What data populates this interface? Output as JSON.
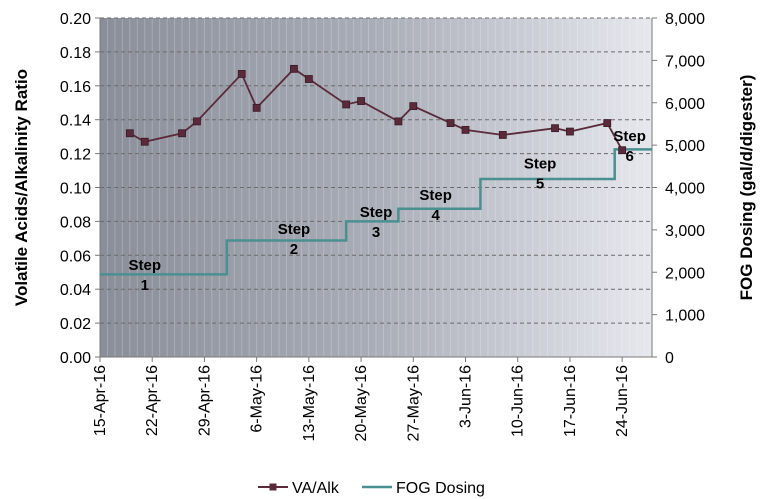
{
  "chart_data": {
    "type": "line",
    "title": "",
    "x_axis": {
      "start": "2016-04-15",
      "end": "2016-06-28",
      "tick_labels": [
        "15-Apr-16",
        "22-Apr-16",
        "29-Apr-16",
        "6-May-16",
        "13-May-16",
        "20-May-16",
        "27-May-16",
        "3-Jun-16",
        "10-Jun-16",
        "17-Jun-16",
        "24-Jun-16"
      ],
      "tick_dates": [
        "2016-04-15",
        "2016-04-22",
        "2016-04-29",
        "2016-05-06",
        "2016-05-13",
        "2016-05-20",
        "2016-05-27",
        "2016-06-03",
        "2016-06-10",
        "2016-06-17",
        "2016-06-24"
      ]
    },
    "y_left": {
      "label": "Volatile Acids/Alkalinity Ratio",
      "min": 0,
      "max": 0.2,
      "ticks": [
        "0.00",
        "0.02",
        "0.04",
        "0.06",
        "0.08",
        "0.10",
        "0.12",
        "0.14",
        "0.16",
        "0.18",
        "0.20"
      ]
    },
    "y_right": {
      "label": "FOG Dosing (gal/d/digester)",
      "min": 0,
      "max": 8000,
      "ticks": [
        "0",
        "1,000",
        "2,000",
        "3,000",
        "4,000",
        "5,000",
        "6,000",
        "7,000",
        "8,000"
      ]
    },
    "grid": "horizontal dashed, left axis",
    "legend_position": "bottom",
    "series": [
      {
        "name": "VA/Alk",
        "axis": "left",
        "color": "#5a2a3a",
        "marker": "square",
        "points": [
          {
            "date": "2016-04-19",
            "value": 0.132
          },
          {
            "date": "2016-04-21",
            "value": 0.127
          },
          {
            "date": "2016-04-26",
            "value": 0.132
          },
          {
            "date": "2016-04-28",
            "value": 0.139
          },
          {
            "date": "2016-05-04",
            "value": 0.167
          },
          {
            "date": "2016-05-06",
            "value": 0.147
          },
          {
            "date": "2016-05-11",
            "value": 0.17
          },
          {
            "date": "2016-05-13",
            "value": 0.164
          },
          {
            "date": "2016-05-18",
            "value": 0.149
          },
          {
            "date": "2016-05-20",
            "value": 0.151
          },
          {
            "date": "2016-05-25",
            "value": 0.139
          },
          {
            "date": "2016-05-27",
            "value": 0.148
          },
          {
            "date": "2016-06-01",
            "value": 0.138
          },
          {
            "date": "2016-06-03",
            "value": 0.134
          },
          {
            "date": "2016-06-08",
            "value": 0.131
          },
          {
            "date": "2016-06-15",
            "value": 0.135
          },
          {
            "date": "2016-06-17",
            "value": 0.133
          },
          {
            "date": "2016-06-22",
            "value": 0.138
          },
          {
            "date": "2016-06-24",
            "value": 0.122
          }
        ]
      },
      {
        "name": "FOG Dosing",
        "axis": "right",
        "color": "#4a9090",
        "step_segments": [
          {
            "from": "2016-04-15",
            "to": "2016-05-02",
            "value": 1950
          },
          {
            "from": "2016-05-02",
            "to": "2016-05-18",
            "value": 2750
          },
          {
            "from": "2016-05-18",
            "to": "2016-05-25",
            "value": 3200
          },
          {
            "from": "2016-05-25",
            "to": "2016-06-05",
            "value": 3500
          },
          {
            "from": "2016-06-05",
            "to": "2016-06-23",
            "value": 4200
          },
          {
            "from": "2016-06-23",
            "to": "2016-06-28",
            "value": 4900
          }
        ]
      }
    ],
    "annotations": [
      {
        "text": "Step\n1",
        "date": "2016-04-21",
        "value": 2050
      },
      {
        "text": "Step\n2",
        "date": "2016-05-11",
        "value": 2900
      },
      {
        "text": "Step\n3",
        "date": "2016-05-22",
        "value": 3300
      },
      {
        "text": "Step\n4",
        "date": "2016-05-30",
        "value": 3700
      },
      {
        "text": "Step\n5",
        "date": "2016-06-13",
        "value": 4450
      },
      {
        "text": "Step\n6",
        "date": "2016-06-25",
        "value": 5100
      }
    ]
  }
}
